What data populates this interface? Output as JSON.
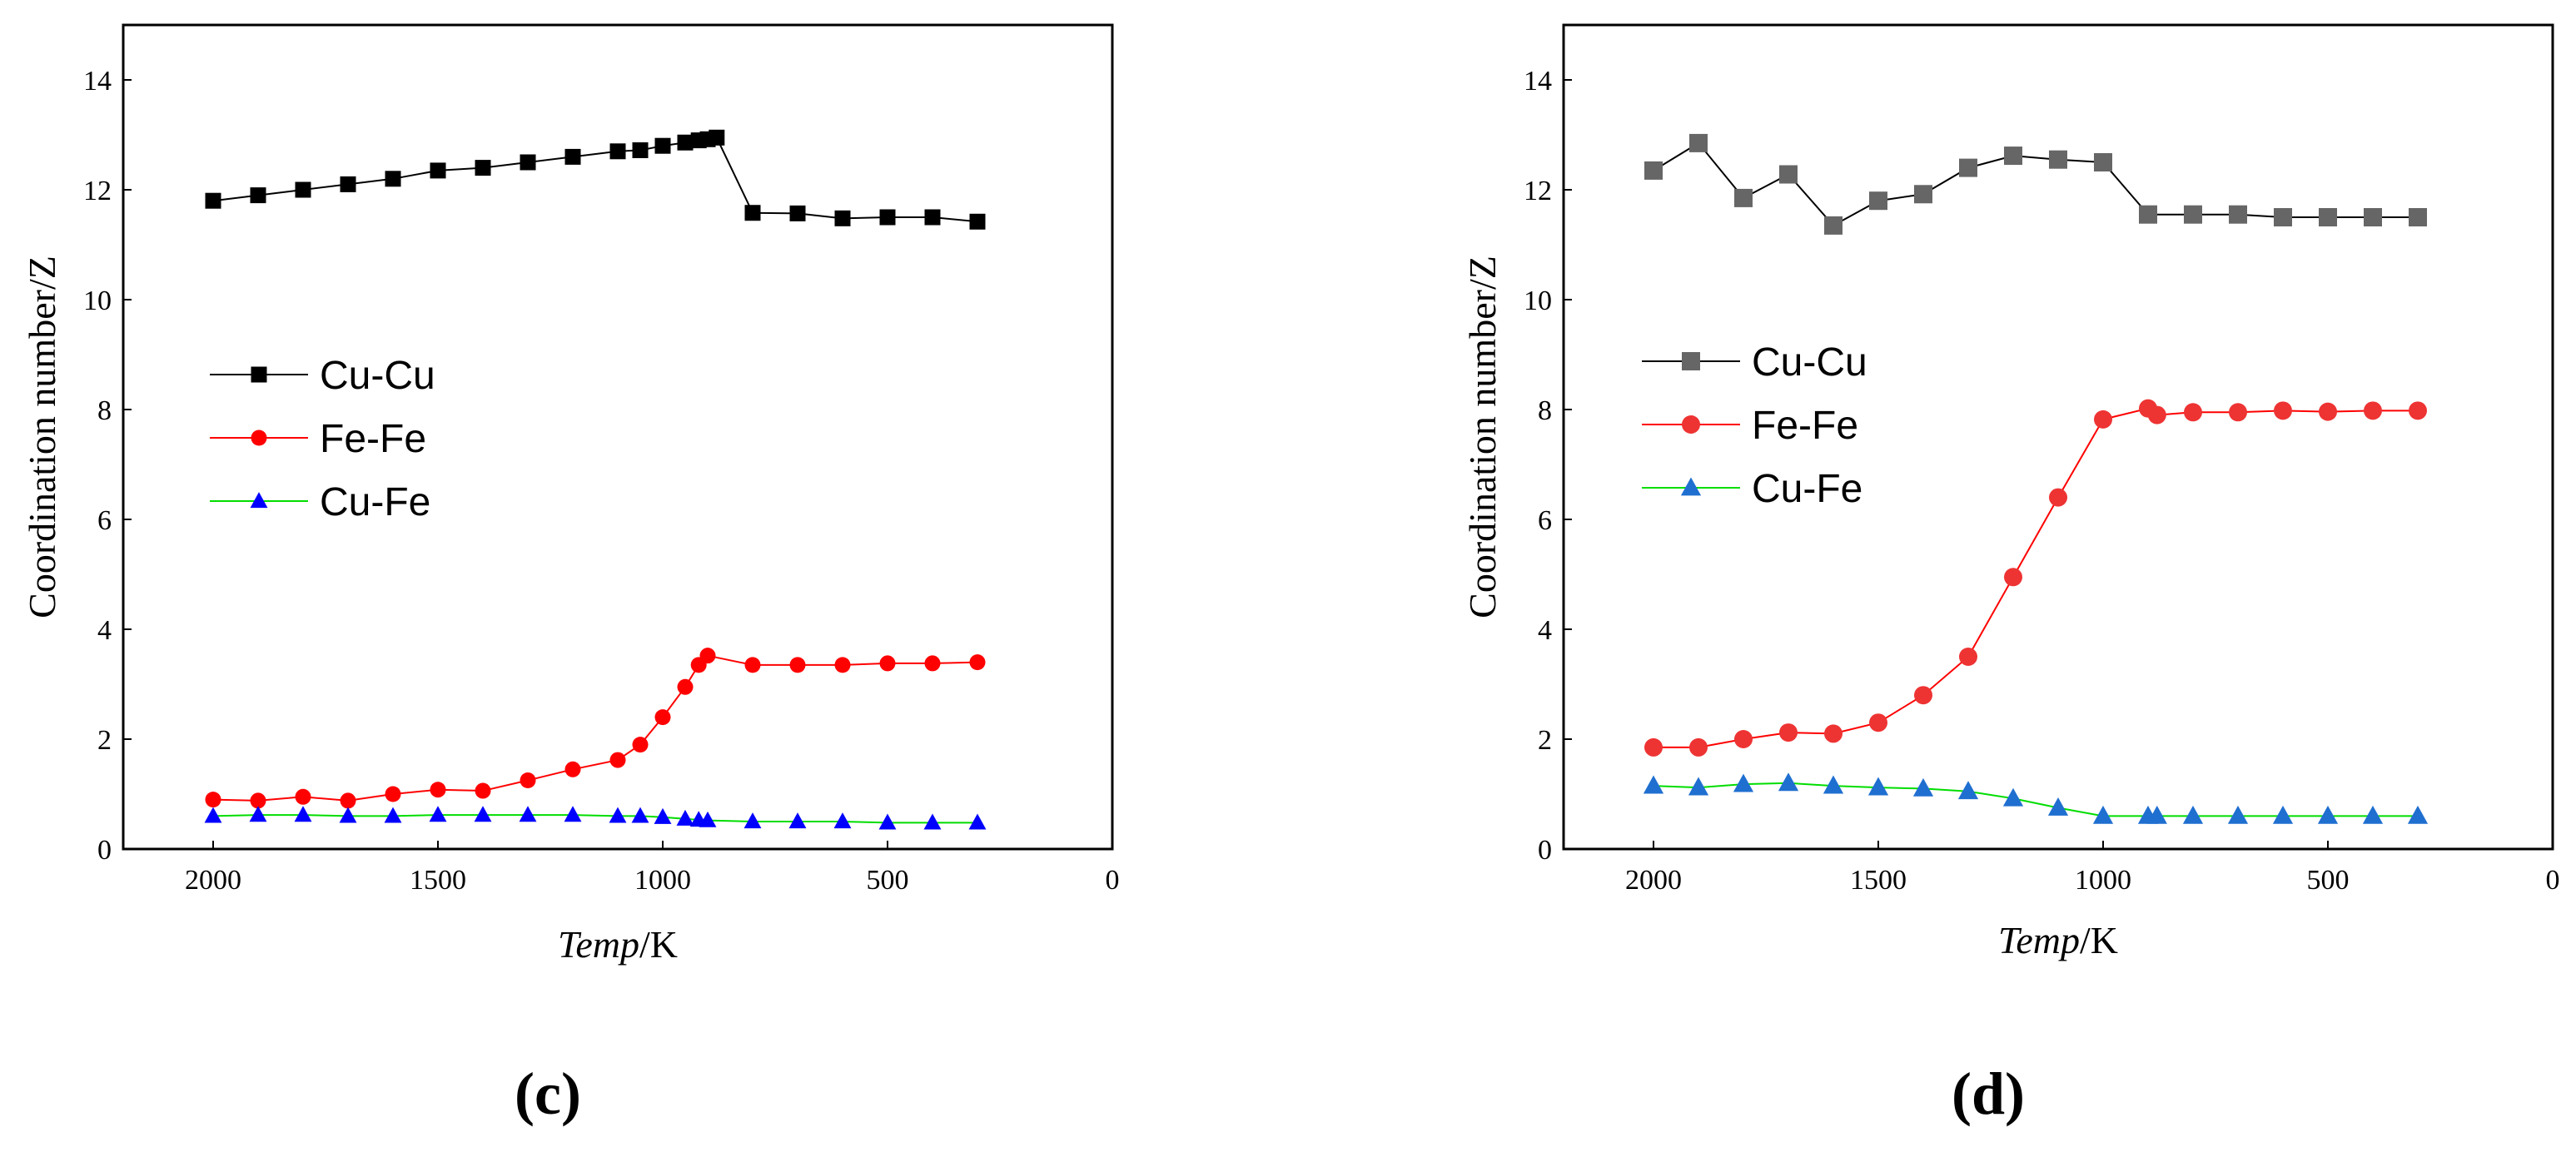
{
  "chart_data": [
    {
      "type": "line",
      "panel_label": "(c)",
      "xlabel_italic": "Temp",
      "xlabel_unit": "/K",
      "ylabel": "Coordination number/Z",
      "xlim": [
        2200,
        0
      ],
      "ylim": [
        0,
        15
      ],
      "xticks": [
        2000,
        1500,
        1000,
        500,
        0
      ],
      "yticks": [
        0,
        2,
        4,
        6,
        8,
        10,
        12,
        14
      ],
      "legend_position": "center-left",
      "series": [
        {
          "name": "Cu-Cu",
          "color": "#000000",
          "line_color": "#000000",
          "marker": "square",
          "x": [
            2000,
            1900,
            1800,
            1700,
            1600,
            1500,
            1400,
            1300,
            1200,
            1100,
            1050,
            1000,
            950,
            920,
            900,
            880,
            800,
            700,
            600,
            500,
            400,
            300
          ],
          "values": [
            11.8,
            11.9,
            12.0,
            12.1,
            12.2,
            12.35,
            12.4,
            12.5,
            12.6,
            12.7,
            12.72,
            12.8,
            12.86,
            12.9,
            12.92,
            12.95,
            11.58,
            11.57,
            11.48,
            11.5,
            11.5,
            11.42
          ]
        },
        {
          "name": "Fe-Fe",
          "color": "#ff0000",
          "line_color": "#ff0000",
          "marker": "circle",
          "x": [
            2000,
            1900,
            1800,
            1700,
            1600,
            1500,
            1400,
            1300,
            1200,
            1100,
            1050,
            1000,
            950,
            920,
            900,
            800,
            700,
            600,
            500,
            400,
            300
          ],
          "values": [
            0.9,
            0.88,
            0.95,
            0.88,
            1.0,
            1.08,
            1.06,
            1.25,
            1.45,
            1.62,
            1.9,
            2.4,
            2.95,
            3.35,
            3.52,
            3.35,
            3.35,
            3.35,
            3.38,
            3.38,
            3.4
          ]
        },
        {
          "name": "Cu-Fe",
          "color": "#0000ff",
          "line_color": "#00dd00",
          "marker": "triangle",
          "x": [
            2000,
            1900,
            1800,
            1700,
            1600,
            1500,
            1400,
            1300,
            1200,
            1100,
            1050,
            1000,
            950,
            920,
            900,
            800,
            700,
            600,
            500,
            400,
            300
          ],
          "values": [
            0.6,
            0.62,
            0.62,
            0.6,
            0.6,
            0.62,
            0.62,
            0.62,
            0.62,
            0.6,
            0.6,
            0.58,
            0.55,
            0.53,
            0.52,
            0.5,
            0.5,
            0.5,
            0.48,
            0.48,
            0.48
          ]
        }
      ]
    },
    {
      "type": "line",
      "panel_label": "(d)",
      "xlabel_italic": "Temp",
      "xlabel_unit": "/K",
      "ylabel": "Coordination number/Z",
      "xlim": [
        2200,
        0
      ],
      "ylim": [
        0,
        15
      ],
      "xticks": [
        2000,
        1500,
        1000,
        500,
        0
      ],
      "yticks": [
        0,
        2,
        4,
        6,
        8,
        10,
        12,
        14
      ],
      "legend_position": "center-left",
      "series": [
        {
          "name": "Cu-Cu",
          "color": "#666666",
          "line_color": "#000000",
          "marker": "square",
          "x": [
            2000,
            1900,
            1800,
            1700,
            1600,
            1500,
            1400,
            1300,
            1200,
            1100,
            1000,
            900,
            800,
            700,
            600,
            500,
            400,
            300
          ],
          "values": [
            12.35,
            12.85,
            11.85,
            12.28,
            11.35,
            11.8,
            11.92,
            12.4,
            12.62,
            12.55,
            12.5,
            11.55,
            11.55,
            11.55,
            11.5,
            11.5,
            11.5,
            11.5
          ]
        },
        {
          "name": "Fe-Fe",
          "color": "#ee3333",
          "line_color": "#ff0000",
          "marker": "circle",
          "x": [
            2000,
            1900,
            1800,
            1700,
            1600,
            1500,
            1400,
            1300,
            1200,
            1100,
            1000,
            900,
            880,
            800,
            700,
            600,
            500,
            400,
            300
          ],
          "values": [
            1.85,
            1.85,
            2.0,
            2.12,
            2.1,
            2.3,
            2.8,
            3.5,
            4.95,
            6.4,
            7.82,
            8.02,
            7.9,
            7.95,
            7.95,
            7.98,
            7.96,
            7.98,
            7.98
          ]
        },
        {
          "name": "Cu-Fe",
          "color": "#1f6fd0",
          "line_color": "#00dd00",
          "marker": "triangle",
          "x": [
            2000,
            1900,
            1800,
            1700,
            1600,
            1500,
            1400,
            1300,
            1200,
            1100,
            1000,
            900,
            880,
            800,
            700,
            600,
            500,
            400,
            300
          ],
          "values": [
            1.15,
            1.12,
            1.18,
            1.2,
            1.15,
            1.12,
            1.1,
            1.05,
            0.92,
            0.75,
            0.6,
            0.6,
            0.6,
            0.6,
            0.6,
            0.6,
            0.6,
            0.6,
            0.6
          ]
        }
      ]
    }
  ]
}
